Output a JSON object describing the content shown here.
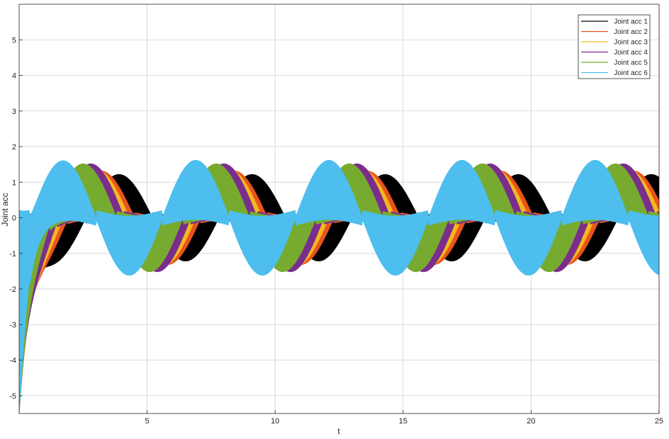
{
  "chart_data": {
    "type": "area",
    "title": "",
    "xlabel": "t",
    "ylabel": "Joint acc",
    "xlim": [
      0,
      25
    ],
    "ylim": [
      -5.5,
      6
    ],
    "xticks": [
      5,
      10,
      15,
      20,
      25
    ],
    "yticks": [
      -5,
      -4,
      -3,
      -2,
      -1,
      0,
      1,
      2,
      3,
      4,
      5
    ],
    "grid": true,
    "legend_position": "top-right",
    "series": [
      {
        "name": "Joint acc 1",
        "color": "#000000",
        "amplitude": 1.2,
        "period": 5.2,
        "phase_peak_t": 3.9,
        "band_fraction": 0.55
      },
      {
        "name": "Joint acc 2",
        "color": "#e9541b",
        "amplitude": 1.3,
        "period": 5.2,
        "phase_peak_t": 3.2,
        "band_fraction": 0.5
      },
      {
        "name": "Joint acc 3",
        "color": "#f3b81f",
        "amplitude": 1.35,
        "period": 5.2,
        "phase_peak_t": 3.0,
        "band_fraction": 0.5
      },
      {
        "name": "Joint acc 4",
        "color": "#7b2d8e",
        "amplitude": 1.5,
        "period": 5.2,
        "phase_peak_t": 2.8,
        "band_fraction": 0.55
      },
      {
        "name": "Joint acc 5",
        "color": "#76ab2f",
        "amplitude": 1.5,
        "period": 5.2,
        "phase_peak_t": 2.5,
        "band_fraction": 0.55
      },
      {
        "name": "Joint acc 6",
        "color": "#4dbeee",
        "amplitude": 1.6,
        "period": 5.2,
        "phase_peak_t": 1.7,
        "band_fraction": 0.6
      }
    ]
  }
}
